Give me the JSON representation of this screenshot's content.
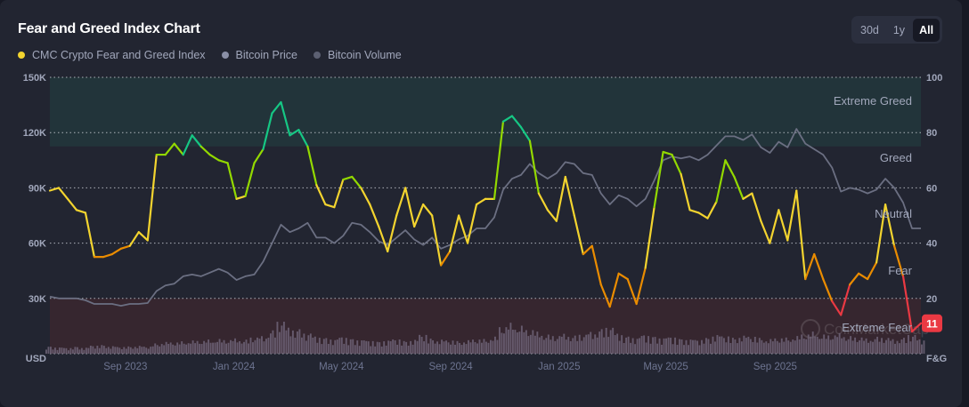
{
  "title": "Fear and Greed Index Chart",
  "legend": [
    {
      "label": "CMC Crypto Fear and Greed Index",
      "color": "#f3d42f"
    },
    {
      "label": "Bitcoin Price",
      "color": "#8a8fa6"
    },
    {
      "label": "Bitcoin Volume",
      "color": "#5c6072"
    }
  ],
  "ranges": [
    "30d",
    "1y",
    "All"
  ],
  "active_range": "All",
  "watermark": "CoinMarketCap",
  "current_value": "11",
  "chart_data": {
    "type": "line",
    "left_axis": {
      "unit_label": "USD",
      "ticks": [
        "150K",
        "120K",
        "90K",
        "60K",
        "30K"
      ],
      "range": [
        0,
        150000
      ]
    },
    "right_axis": {
      "unit_label": "F&G",
      "ticks": [
        "100",
        "80",
        "60",
        "40",
        "20"
      ],
      "range": [
        0,
        100
      ]
    },
    "x_ticks": [
      {
        "label": "Sep 2023",
        "date": "2023-09-01"
      },
      {
        "label": "Jan 2024",
        "date": "2024-01-01"
      },
      {
        "label": "May 2024",
        "date": "2024-05-01"
      },
      {
        "label": "Sep 2024",
        "date": "2024-09-01"
      },
      {
        "label": "Jan 2025",
        "date": "2025-01-01"
      },
      {
        "label": "May 2025",
        "date": "2025-05-01"
      },
      {
        "label": "Sep 2025",
        "date": "2025-09-01"
      }
    ],
    "grid": true,
    "zones": [
      {
        "label": "Extreme Greed",
        "from": 75,
        "to": 100,
        "color": "#22343a"
      },
      {
        "label": "Greed",
        "from": 55,
        "to": 75
      },
      {
        "label": "Neutral",
        "from": 45,
        "to": 55
      },
      {
        "label": "Fear",
        "from": 25,
        "to": 45
      },
      {
        "label": "Extreme Fear",
        "from": 0,
        "to": 20,
        "color": "#36262f"
      }
    ],
    "fg_colors": {
      "extreme_fear": "#ea3943",
      "fear": "#ea8c00",
      "neutral": "#f3d42f",
      "greed": "#93d900",
      "extreme_greed": "#16c784"
    },
    "dates": [
      "2023-06-08",
      "2023-06-18",
      "2023-06-28",
      "2023-07-08",
      "2023-07-18",
      "2023-07-28",
      "2023-08-07",
      "2023-08-17",
      "2023-08-27",
      "2023-09-06",
      "2023-09-16",
      "2023-09-26",
      "2023-10-06",
      "2023-10-16",
      "2023-10-26",
      "2023-11-05",
      "2023-11-15",
      "2023-11-25",
      "2023-12-05",
      "2023-12-15",
      "2023-12-25",
      "2024-01-04",
      "2024-01-14",
      "2024-01-24",
      "2024-02-03",
      "2024-02-13",
      "2024-02-23",
      "2024-03-04",
      "2024-03-14",
      "2024-03-24",
      "2024-04-03",
      "2024-04-13",
      "2024-04-23",
      "2024-05-03",
      "2024-05-13",
      "2024-05-23",
      "2024-06-02",
      "2024-06-12",
      "2024-06-22",
      "2024-07-02",
      "2024-07-12",
      "2024-07-22",
      "2024-08-01",
      "2024-08-11",
      "2024-08-21",
      "2024-08-31",
      "2024-09-10",
      "2024-09-20",
      "2024-09-30",
      "2024-10-10",
      "2024-10-20",
      "2024-10-30",
      "2024-11-09",
      "2024-11-19",
      "2024-11-29",
      "2024-12-09",
      "2024-12-19",
      "2024-12-29",
      "2025-01-08",
      "2025-01-18",
      "2025-01-28",
      "2025-02-07",
      "2025-02-17",
      "2025-02-27",
      "2025-03-09",
      "2025-03-19",
      "2025-03-29",
      "2025-04-08",
      "2025-04-18",
      "2025-04-28",
      "2025-05-08",
      "2025-05-18",
      "2025-05-28",
      "2025-06-07",
      "2025-06-17",
      "2025-06-27",
      "2025-07-07",
      "2025-07-17",
      "2025-07-27",
      "2025-08-06",
      "2025-08-16",
      "2025-08-26",
      "2025-09-05",
      "2025-09-15",
      "2025-09-25",
      "2025-10-05",
      "2025-10-15",
      "2025-10-25",
      "2025-11-04",
      "2025-11-14",
      "2025-11-24",
      "2025-12-04",
      "2025-12-14",
      "2025-12-24",
      "2026-01-03",
      "2026-01-13",
      "2026-01-23",
      "2026-02-02",
      "2026-02-12"
    ],
    "series": [
      {
        "name": "CMC Crypto Fear and Greed Index",
        "axis": "right",
        "values": [
          59,
          60,
          56,
          52,
          51,
          35,
          35,
          36,
          38,
          39,
          44,
          41,
          72,
          72,
          76,
          72,
          79,
          75,
          72,
          70,
          69,
          56,
          57,
          69,
          74,
          87,
          91,
          79,
          81,
          75,
          61,
          54,
          53,
          63,
          64,
          60,
          54,
          46,
          37,
          50,
          60,
          46,
          54,
          50,
          32,
          37,
          50,
          40,
          54,
          56,
          56,
          84,
          86,
          82,
          77,
          58,
          52,
          48,
          64,
          50,
          36,
          39,
          25,
          17,
          29,
          27,
          18,
          31,
          53,
          73,
          72,
          65,
          52,
          51,
          49,
          55,
          70,
          64,
          56,
          58,
          48,
          40,
          52,
          41,
          59,
          27,
          36,
          27,
          19,
          14,
          25,
          29,
          27,
          33,
          54,
          39,
          28,
          8,
          11
        ]
      },
      {
        "name": "Bitcoin Price",
        "axis": "left",
        "values": [
          31000,
          30000,
          30000,
          30000,
          29000,
          27000,
          27000,
          27000,
          26000,
          27000,
          27000,
          27500,
          34000,
          37000,
          38000,
          42000,
          43000,
          42000,
          44000,
          46000,
          44000,
          40000,
          42000,
          43000,
          50000,
          60000,
          70000,
          66000,
          68000,
          71000,
          63000,
          63000,
          60000,
          64000,
          71000,
          70000,
          66000,
          61000,
          59000,
          63000,
          67000,
          62000,
          59000,
          63000,
          57000,
          59000,
          62000,
          64000,
          68000,
          68000,
          74000,
          89000,
          95000,
          97000,
          103000,
          98000,
          95000,
          98000,
          104000,
          103000,
          98000,
          97000,
          87000,
          81000,
          86000,
          84000,
          80000,
          84000,
          94000,
          105000,
          107000,
          106000,
          107000,
          105000,
          108000,
          113000,
          118000,
          118000,
          116000,
          119000,
          112000,
          109000,
          115000,
          112000,
          122000,
          114000,
          111000,
          108000,
          101000,
          88000,
          90000,
          89000,
          87000,
          89000,
          95000,
          90000,
          82000,
          68000,
          68000
        ]
      },
      {
        "name": "Bitcoin Volume",
        "axis": "left",
        "values": [
          2500,
          2200,
          2000,
          2400,
          2100,
          2800,
          3000,
          2600,
          2300,
          2500,
          2700,
          2400,
          3500,
          4000,
          3800,
          4200,
          4500,
          4300,
          4800,
          5000,
          4600,
          5200,
          4800,
          5500,
          6000,
          8000,
          11000,
          9000,
          8500,
          7000,
          6000,
          5500,
          5000,
          5800,
          5200,
          4800,
          4500,
          4200,
          4600,
          5000,
          4400,
          4800,
          6500,
          5200,
          4800,
          4500,
          4300,
          4600,
          4800,
          5000,
          5800,
          9000,
          10500,
          9500,
          8000,
          7500,
          6500,
          6000,
          6800,
          6200,
          6500,
          7500,
          8500,
          9000,
          7000,
          6000,
          5500,
          6500,
          6000,
          5500,
          5800,
          5200,
          5000,
          4800,
          5500,
          6500,
          6000,
          5500,
          6200,
          5800,
          5400,
          5000,
          5200,
          5500,
          6000,
          6500,
          7500,
          6500,
          6200,
          7000,
          6000,
          5500,
          5200,
          5800,
          5400,
          5000,
          5500,
          6500,
          5000
        ]
      }
    ]
  }
}
